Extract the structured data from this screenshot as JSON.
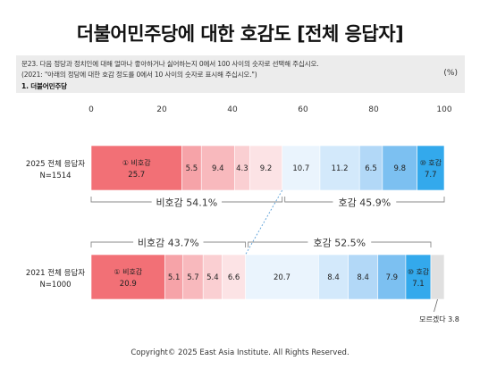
{
  "title": "더불어민주당에 대한 호감도 [전체 응답자]",
  "question": {
    "line1": "문23. 다음 정당과 정치인에 대해 얼마나 좋아하거나 싫어하는지 0에서 100 사이의 숫자로 선택해 주십시오.",
    "line2": "(2021: \"아래의 정당에 대한 호감 정도를 0에서 10 사이의 숫자로 표시해 주십시오.\")",
    "line3": "1. 더불어민주당",
    "unit": "(%)"
  },
  "footer": "Copyright© 2025 East Asia Institute. All Rights Reserved.",
  "colors": {
    "segments": [
      "#f27076",
      "#f6a3a8",
      "#f8b9bd",
      "#facfd2",
      "#fce3e5",
      "#eaf4fd",
      "#d3e9fb",
      "#b2d8f7",
      "#7cc0f1",
      "#33a9ec"
    ],
    "unknown": "#e0e0e0",
    "bracket": "#888888"
  },
  "chart_data": {
    "type": "bar",
    "orientation": "horizontal-stacked",
    "xlim": [
      0,
      100
    ],
    "x_ticks": [
      "0",
      "20",
      "40",
      "60",
      "80",
      "100"
    ],
    "categories": [
      "2025 전체 응답자\nN=1514",
      "2021 전체 응답자\nN=1000"
    ],
    "rows": [
      {
        "label_line1": "2025 전체 응답자",
        "label_line2": "N=1514",
        "values": [
          25.7,
          5.5,
          9.4,
          4.3,
          9.2,
          10.7,
          11.2,
          6.5,
          9.8,
          7.7
        ],
        "labels": [
          "25.7",
          "5.5",
          "9.4",
          "4.3",
          "9.2",
          "10.7",
          "11.2",
          "6.5",
          "9.8",
          "7.7"
        ],
        "first_tag": "① 비호감",
        "last_tag": "⑩ 호감",
        "unknown_value": null,
        "unfavorable_label": "비호감 54.1%",
        "favorable_label": "호감 45.9%"
      },
      {
        "label_line1": "2021 전체 응답자",
        "label_line2": "N=1000",
        "values": [
          20.9,
          5.1,
          5.7,
          5.4,
          6.6,
          20.7,
          8.4,
          8.4,
          7.9,
          7.1
        ],
        "labels": [
          "20.9",
          "5.1",
          "5.7",
          "5.4",
          "6.6",
          "20.7",
          "8.4",
          "8.4",
          "7.9",
          "7.1"
        ],
        "first_tag": "① 비호감",
        "last_tag": "⑩ 호감",
        "unknown_value": 3.8,
        "unknown_label": "모르겠다 3.8",
        "unfavorable_label": "비호감 43.7%",
        "favorable_label": "호감 52.5%"
      }
    ]
  }
}
